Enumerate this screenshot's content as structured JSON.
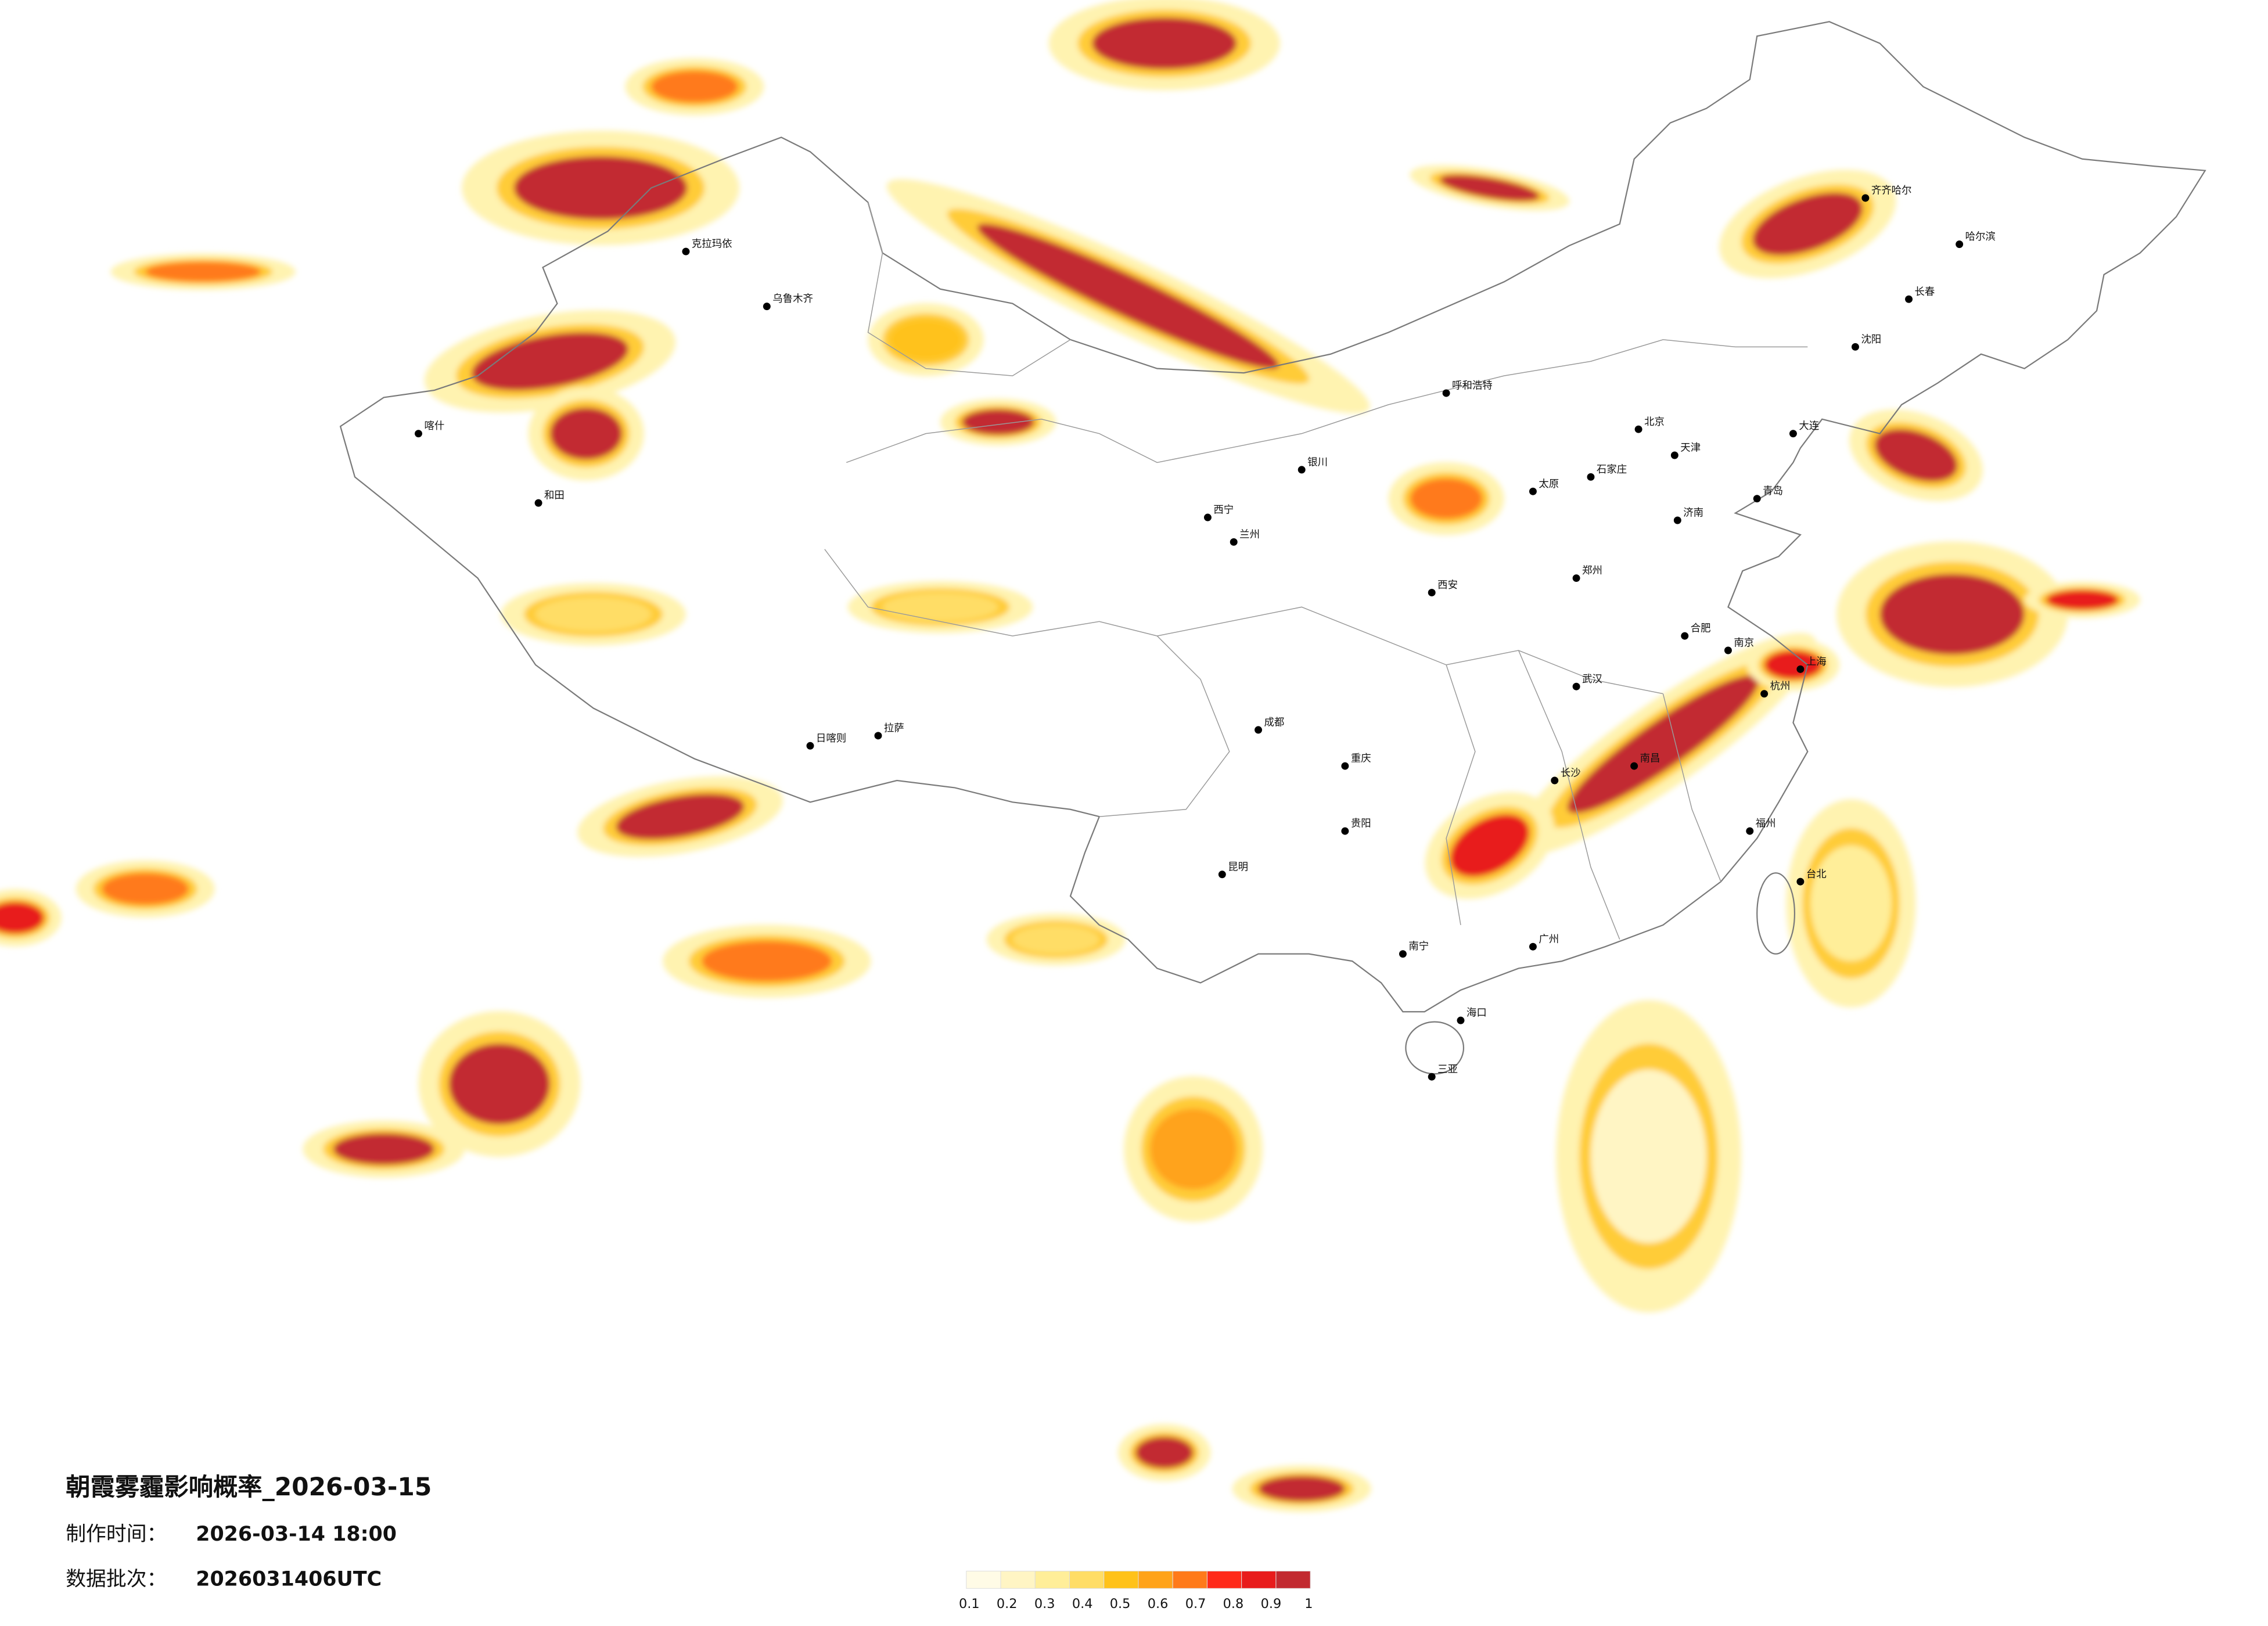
{
  "header": {
    "title": "朝霞雾霾影响概率_2026-03-15",
    "made_label": "制作时间：",
    "made_time": "2026-03-14 18:00",
    "batch_label": "数据批次：",
    "batch": "2026031406UTC"
  },
  "legend": {
    "colors": [
      "#fffbe6",
      "#fff5c4",
      "#ffee99",
      "#ffdd66",
      "#ffc21a",
      "#ffa31a",
      "#ff7a1a",
      "#ff2a1a",
      "#e81c1c",
      "#c22a30"
    ],
    "ticks": [
      0.1,
      0.2,
      0.3,
      0.4,
      0.5,
      0.6,
      0.7,
      0.8,
      0.9,
      1
    ]
  },
  "cities": [
    "北京",
    "天津",
    "上海",
    "齐齐哈尔",
    "哈尔滨",
    "长春",
    "沈阳",
    "乌鲁木齐",
    "克拉玛依",
    "喀什",
    "和田",
    "拉萨",
    "日喀则",
    "西宁",
    "兰州",
    "银川",
    "呼和浩特",
    "太原",
    "石家庄",
    "济南",
    "郑州",
    "西安",
    "成都",
    "重庆",
    "贵阳",
    "昆明",
    "南宁",
    "广州",
    "海口",
    "三亚",
    "长沙",
    "南昌",
    "武汉",
    "合肥",
    "南京",
    "杭州",
    "福州",
    "台北",
    "大连",
    "青岛"
  ]
}
